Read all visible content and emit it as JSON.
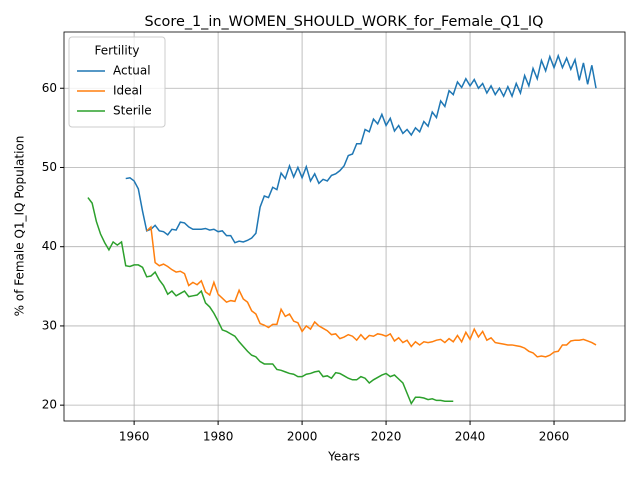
{
  "chart_data": {
    "type": "line",
    "title": "Score_1_in_WOMEN_SHOULD_WORK_for_Female_Q1_IQ",
    "xlabel": "Years",
    "ylabel": "% of Female Q1_IQ Population",
    "legend_title": "Fertility",
    "legend": "upper left",
    "grid": true,
    "xlim": [
      1943.3,
      2076.9
    ],
    "ylim": [
      18,
      67.1
    ],
    "xticks": [
      1960,
      1980,
      2000,
      2020,
      2040,
      2060
    ],
    "yticks": [
      20,
      30,
      40,
      50,
      60
    ],
    "x": [
      1949,
      1950,
      1951,
      1952,
      1953,
      1954,
      1955,
      1956,
      1957,
      1958,
      1959,
      1960,
      1961,
      1962,
      1963,
      1964,
      1965,
      1966,
      1967,
      1968,
      1969,
      1970,
      1971,
      1972,
      1973,
      1974,
      1975,
      1976,
      1977,
      1978,
      1979,
      1980,
      1981,
      1982,
      1983,
      1984,
      1985,
      1986,
      1987,
      1988,
      1989,
      1990,
      1991,
      1992,
      1993,
      1994,
      1995,
      1996,
      1997,
      1998,
      1999,
      2000,
      2001,
      2002,
      2003,
      2004,
      2005,
      2006,
      2007,
      2008,
      2009,
      2010,
      2011,
      2012,
      2013,
      2014,
      2015,
      2016,
      2017,
      2018,
      2019,
      2020,
      2021,
      2022,
      2023,
      2024,
      2025,
      2026,
      2027,
      2028,
      2029,
      2030,
      2031,
      2032,
      2033,
      2034,
      2035,
      2036,
      2037,
      2038,
      2039,
      2040,
      2041,
      2042,
      2043,
      2044,
      2045,
      2046,
      2047,
      2048,
      2049,
      2050,
      2051,
      2052,
      2053,
      2054,
      2055,
      2056,
      2057,
      2058,
      2059,
      2060,
      2061,
      2062,
      2063,
      2064,
      2065,
      2066,
      2067,
      2068,
      2069,
      2070
    ],
    "series": [
      {
        "name": "Actual",
        "color": "#1f77b4",
        "values": [
          null,
          null,
          null,
          null,
          null,
          null,
          null,
          null,
          null,
          48.6,
          48.7,
          48.3,
          47.3,
          44.5,
          42.0,
          42.2,
          42.7,
          42.0,
          41.9,
          41.5,
          42.2,
          42.1,
          43.1,
          43.0,
          42.5,
          42.2,
          42.2,
          42.2,
          42.3,
          42.1,
          42.2,
          41.9,
          42.0,
          41.4,
          41.4,
          40.5,
          40.7,
          40.6,
          40.8,
          41.1,
          41.7,
          45.0,
          46.4,
          46.2,
          47.5,
          47.2,
          49.3,
          48.6,
          50.2,
          48.8,
          50.0,
          48.7,
          50.1,
          48.3,
          49.2,
          48.0,
          48.5,
          48.3,
          49.0,
          49.2,
          49.6,
          50.2,
          51.5,
          51.7,
          53.0,
          53.0,
          54.8,
          54.5,
          56.1,
          55.5,
          56.7,
          55.3,
          56.2,
          54.6,
          55.3,
          54.3,
          54.8,
          54.1,
          55.0,
          54.5,
          55.8,
          55.2,
          57.0,
          56.3,
          58.4,
          57.7,
          59.7,
          59.2,
          60.8,
          60.1,
          61.2,
          60.3,
          61.1,
          60.0,
          60.6,
          59.4,
          60.3,
          59.2,
          60.0,
          59.0,
          60.2,
          59.0,
          60.6,
          59.4,
          61.6,
          60.3,
          62.5,
          61.2,
          63.5,
          62.2,
          64.0,
          62.6,
          64.1,
          62.6,
          63.8,
          62.4,
          63.6,
          61.0,
          63.2,
          60.5,
          62.9,
          60.0
        ]
      },
      {
        "name": "Ideal",
        "color": "#ff7f0e",
        "values": [
          null,
          null,
          null,
          null,
          null,
          null,
          null,
          null,
          null,
          null,
          null,
          null,
          null,
          null,
          42.0,
          42.5,
          38.0,
          37.6,
          37.8,
          37.5,
          37.1,
          36.8,
          36.9,
          36.6,
          35.1,
          35.5,
          35.2,
          35.7,
          34.3,
          33.9,
          35.5,
          34.0,
          33.5,
          33.0,
          33.2,
          33.1,
          34.5,
          33.4,
          33.0,
          31.9,
          31.5,
          30.3,
          30.1,
          29.8,
          30.2,
          30.2,
          32.1,
          31.2,
          31.5,
          30.6,
          30.4,
          29.3,
          30.0,
          29.6,
          30.5,
          30.0,
          29.7,
          29.4,
          28.9,
          29.0,
          28.4,
          28.6,
          28.9,
          28.7,
          28.2,
          28.9,
          28.3,
          28.8,
          28.7,
          29.0,
          28.9,
          28.7,
          29.0,
          28.1,
          28.5,
          27.9,
          28.2,
          27.4,
          28.0,
          27.6,
          28.0,
          27.9,
          28.0,
          28.2,
          28.3,
          27.9,
          28.4,
          28.0,
          28.8,
          28.0,
          29.2,
          28.3,
          29.6,
          28.6,
          29.3,
          28.2,
          28.5,
          27.9,
          27.8,
          27.7,
          27.6,
          27.6,
          27.5,
          27.4,
          27.2,
          26.8,
          26.6,
          26.1,
          26.2,
          26.1,
          26.3,
          26.7,
          26.8,
          27.6,
          27.6,
          28.1,
          28.2,
          28.2,
          28.3,
          28.1,
          27.9,
          27.6
        ]
      },
      {
        "name": "Sterile",
        "color": "#2ca02c",
        "values": [
          46.2,
          45.5,
          43.2,
          41.6,
          40.5,
          39.6,
          40.6,
          40.2,
          40.6,
          37.6,
          37.5,
          37.7,
          37.7,
          37.4,
          36.2,
          36.3,
          36.8,
          35.8,
          35.1,
          34.0,
          34.4,
          33.8,
          34.1,
          34.4,
          33.7,
          33.8,
          33.9,
          34.4,
          32.9,
          32.4,
          31.6,
          30.6,
          29.5,
          29.3,
          29.0,
          28.7,
          28.0,
          27.4,
          26.8,
          26.3,
          26.1,
          25.5,
          25.2,
          25.2,
          25.2,
          24.5,
          24.4,
          24.2,
          24.0,
          23.9,
          23.6,
          23.6,
          23.9,
          24.0,
          24.2,
          24.3,
          23.6,
          23.7,
          23.4,
          24.1,
          24.0,
          23.7,
          23.4,
          23.2,
          23.2,
          23.6,
          23.4,
          22.8,
          23.2,
          23.5,
          23.8,
          24.0,
          23.6,
          23.8,
          23.3,
          22.8,
          21.5,
          20.2,
          21.0,
          21.0,
          20.9,
          20.7,
          20.8,
          20.6,
          20.6,
          20.5,
          20.5,
          20.5,
          null,
          null,
          null,
          null,
          null,
          null,
          null,
          null,
          null,
          null,
          null,
          null,
          null,
          null,
          null,
          null,
          null,
          null,
          null,
          null,
          null,
          null,
          null,
          null,
          null,
          null,
          null,
          null,
          null,
          null,
          null,
          null,
          null,
          null
        ]
      }
    ]
  }
}
